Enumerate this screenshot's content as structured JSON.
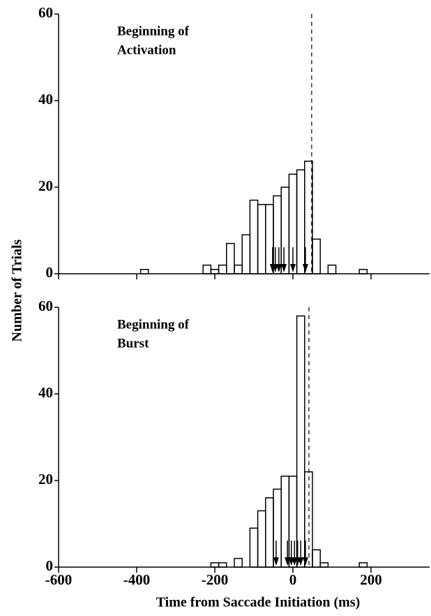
{
  "chart_data": [
    {
      "type": "histogram",
      "annotation": [
        "Beginning of",
        "Activation"
      ],
      "ylabel": "Number of Trials",
      "bins": [
        -410,
        -390,
        -370,
        -350,
        -330,
        -310,
        -290,
        -270,
        -250,
        -230,
        -210,
        -190,
        -170,
        -150,
        -130,
        -110,
        -90,
        -70,
        -50,
        -30,
        -10,
        10,
        30,
        50,
        70,
        90,
        110,
        130,
        150,
        170,
        190
      ],
      "counts": [
        0,
        1,
        0,
        0,
        0,
        0,
        0,
        0,
        0,
        2,
        1,
        2,
        7,
        2,
        9,
        17,
        16,
        16,
        18,
        20,
        23,
        24,
        26,
        8,
        0,
        2,
        0,
        0,
        0,
        1
      ],
      "markers": [
        -52,
        -45,
        -36,
        -23,
        0,
        32
      ],
      "reference_x": 48,
      "xlim": [
        -600,
        350
      ],
      "xticks": [
        -600,
        -400,
        -200,
        0,
        200
      ],
      "ylim": [
        0,
        60
      ],
      "yticks": [
        0,
        20,
        40,
        60
      ],
      "color": "#000000"
    },
    {
      "type": "histogram",
      "annotation": [
        "Beginning of",
        "Burst"
      ],
      "xlabel": "Time from Saccade Initiation (ms)",
      "bins": [
        -410,
        -390,
        -370,
        -350,
        -330,
        -310,
        -290,
        -270,
        -250,
        -230,
        -210,
        -190,
        -170,
        -150,
        -130,
        -110,
        -90,
        -70,
        -50,
        -30,
        -10,
        10,
        30,
        50,
        70,
        90,
        110,
        130,
        150,
        170,
        190
      ],
      "counts": [
        0,
        0,
        0,
        0,
        0,
        0,
        0,
        0,
        0,
        0,
        1,
        1,
        0,
        2,
        0,
        9,
        13,
        16,
        18,
        21,
        21,
        58,
        22,
        4,
        1,
        0,
        0,
        0,
        0,
        1
      ],
      "markers": [
        -43,
        -14,
        -4,
        4,
        12,
        20,
        32
      ],
      "reference_x": 41,
      "xlim": [
        -600,
        350
      ],
      "xticks": [
        -600,
        -400,
        -200,
        0,
        200
      ],
      "ylim": [
        0,
        60
      ],
      "yticks": [
        0,
        20,
        40,
        60
      ],
      "color": "#000000"
    }
  ]
}
